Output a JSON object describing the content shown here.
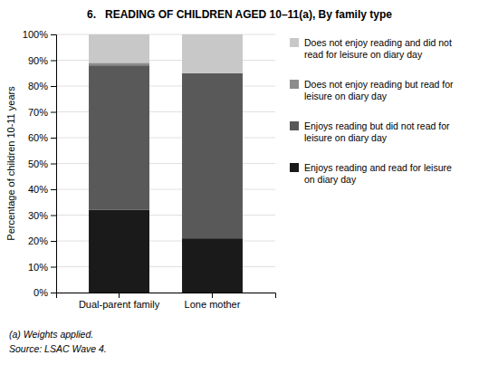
{
  "chart_data": {
    "type": "bar",
    "stacked": true,
    "title": "6.   READING OF CHILDREN AGED 10–11(a), By family type",
    "categories": [
      "Dual-parent family",
      "Lone mother"
    ],
    "series": [
      {
        "name": "Enjoys reading and read for leisure\non diary day",
        "values": [
          32,
          21
        ],
        "color": "#1a1a1a"
      },
      {
        "name": "Enjoys reading but did not read for\nleisure on diary day",
        "values": [
          56,
          64
        ],
        "color": "#595959"
      },
      {
        "name": "Does not enjoy reading but read for\nleisure on diary day",
        "values": [
          1,
          0
        ],
        "color": "#8c8c8c"
      },
      {
        "name": "Does not enjoy reading and did not\nread for leisure on diary day",
        "values": [
          11,
          15
        ],
        "color": "#c8c8c8"
      }
    ],
    "y_label": "Percentage of children 10-11 years",
    "ylim": [
      0,
      100
    ],
    "yticks": [
      {
        "value": 0,
        "label": "0%"
      },
      {
        "value": 10,
        "label": "10%"
      },
      {
        "value": 20,
        "label": "20%"
      },
      {
        "value": 30,
        "label": "30%"
      },
      {
        "value": 40,
        "label": "40%"
      },
      {
        "value": 50,
        "label": "50%"
      },
      {
        "value": 60,
        "label": "60%"
      },
      {
        "value": 70,
        "label": "70%"
      },
      {
        "value": 80,
        "label": "80%"
      },
      {
        "value": 90,
        "label": "90%"
      },
      {
        "value": 100,
        "label": "100%"
      }
    ],
    "grid": true,
    "legend": "right",
    "annotations": [
      "(a) Weights applied.",
      "Source: LSAC Wave 4."
    ]
  }
}
